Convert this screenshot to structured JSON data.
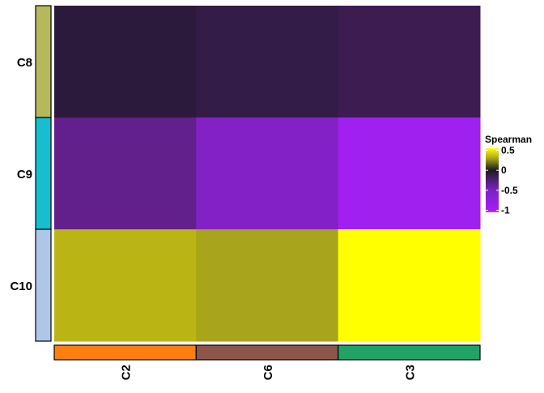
{
  "chart_data": {
    "type": "heatmap",
    "title": "",
    "xlabel": "",
    "ylabel": "",
    "columns": [
      "C2",
      "C6",
      "C3"
    ],
    "rows": [
      "C8",
      "C9",
      "C10"
    ],
    "values": [
      [
        -0.05,
        -0.1,
        -0.15
      ],
      [
        -0.55,
        -0.75,
        -1.0
      ],
      [
        0.4,
        0.3,
        0.55
      ]
    ],
    "column_annotation_colors": [
      "#ff7f0e",
      "#8c564b",
      "#21a366"
    ],
    "row_annotation_colors": [
      "#b5b95c",
      "#17becf",
      "#aec7e8"
    ],
    "legend": {
      "title": "Spearman",
      "position": "right",
      "ticks": [
        "0.5",
        "0",
        "-0.5",
        "-1"
      ],
      "tick_values": [
        0.5,
        0,
        -0.5,
        -1
      ],
      "range": [
        -1.05,
        0.55
      ],
      "color_stops": [
        {
          "value": -1.05,
          "color": "#ff1aff"
        },
        {
          "value": -1.0,
          "color": "#a020f0"
        },
        {
          "value": -0.5,
          "color": "#7a22c4"
        },
        {
          "value": -0.15,
          "color": "#3e1c52"
        },
        {
          "value": 0.0,
          "color": "#1a1a1a"
        },
        {
          "value": 0.3,
          "color": "#a8a41c"
        },
        {
          "value": 0.55,
          "color": "#ffff00"
        }
      ]
    },
    "cell_colors": [
      [
        "#2c1a3c",
        "#341c48",
        "#3d1c52"
      ],
      [
        "#62208c",
        "#8321c6",
        "#a020f0"
      ],
      [
        "#bab415",
        "#a8a41c",
        "#ffff00"
      ]
    ],
    "grid": false
  }
}
